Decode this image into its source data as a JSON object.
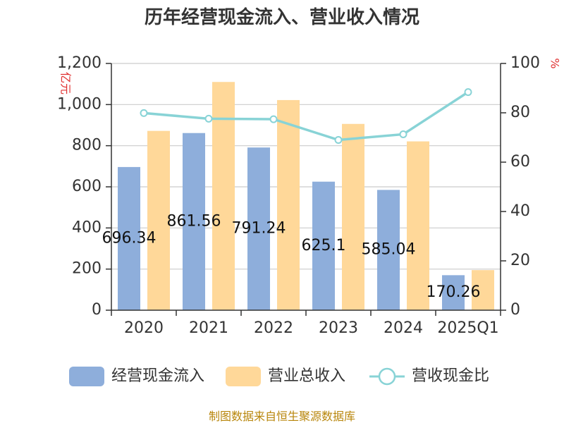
{
  "chart_data": {
    "type": "bar",
    "title": "历年经营现金流入、营业收入情况",
    "categories": [
      "2020",
      "2021",
      "2022",
      "2023",
      "2024",
      "2025Q1"
    ],
    "series": [
      {
        "name": "经营现金流入",
        "kind": "bar",
        "axis": "left",
        "color": "#8eaedb",
        "values": [
          696.34,
          861.56,
          791.24,
          625.1,
          585.04,
          170.26
        ],
        "labels": [
          "696.34",
          "861.56",
          "791.24",
          "625.1",
          "585.04",
          "170.26"
        ]
      },
      {
        "name": "营业总收入",
        "kind": "bar",
        "axis": "left",
        "color": "#ffd899",
        "values": [
          872,
          1110,
          1022,
          906,
          821,
          195
        ]
      },
      {
        "name": "营收现金比",
        "kind": "line",
        "axis": "right",
        "color": "#88d3d6",
        "values": [
          79.9,
          77.6,
          77.4,
          69.0,
          71.3,
          88.4
        ]
      }
    ],
    "y_left": {
      "unit": "亿元",
      "min": 0,
      "max": 1200,
      "ticks": [
        0,
        200,
        400,
        600,
        800,
        1000,
        1200
      ],
      "tick_labels": [
        "0",
        "200",
        "400",
        "600",
        "800",
        "1,000",
        "1,200"
      ]
    },
    "y_right": {
      "unit": "%",
      "min": 0,
      "max": 100,
      "ticks": [
        0,
        20,
        40,
        60,
        80,
        100
      ],
      "tick_labels": [
        "0",
        "20",
        "40",
        "60",
        "80",
        "100"
      ]
    },
    "grid": true,
    "legend": "bottom"
  },
  "footer": {
    "source": "制图数据来自恒生聚源数据库"
  }
}
